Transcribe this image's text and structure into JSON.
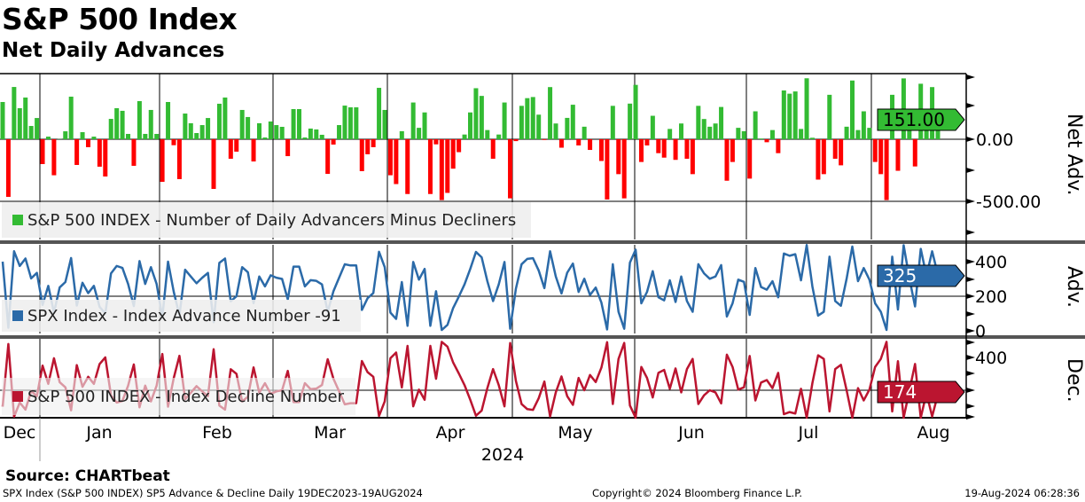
{
  "title": "S&P 500 Index",
  "subtitle": "Net Daily Advances",
  "source": "Source: CHARTbeat",
  "footer": {
    "left": "SPX Index (S&P 500 INDEX) SP5 Advance & Decline  Daily 19DEC2023-19AUG2024",
    "center": "Copyright© 2024 Bloomberg Finance L.P.",
    "right": "19-Aug-2024 06:28:36"
  },
  "colors": {
    "pos": "#33bb33",
    "neg": "#ff0000",
    "adv": "#2b6aa8",
    "dec": "#bb1530"
  },
  "chart_data": [
    {
      "type": "bar",
      "name": "net",
      "legend": "S&P 500 INDEX - Number of Daily Advancers Minus Decliners",
      "axis_title": "Net Adv.",
      "ticks": [
        "0.00",
        "-500.00"
      ],
      "tick_values": [
        0,
        -500
      ],
      "last_label": "151.00",
      "ylim": [
        -800,
        530
      ],
      "values": [
        300,
        -464,
        421,
        250,
        336,
        107,
        171,
        -200,
        21,
        -290,
        2,
        64,
        343,
        -207,
        57,
        -64,
        21,
        -221,
        -300,
        164,
        250,
        229,
        43,
        -214,
        307,
        43,
        236,
        43,
        -343,
        300,
        -48,
        -321,
        207,
        129,
        50,
        114,
        171,
        -400,
        286,
        336,
        -157,
        -100,
        236,
        179,
        -179,
        129,
        14,
        143,
        114,
        100,
        -136,
        243,
        243,
        14,
        86,
        79,
        36,
        -279,
        -43,
        114,
        271,
        257,
        257,
        -257,
        -121,
        -64,
        414,
        236,
        -290,
        -361,
        65,
        -441,
        296,
        92,
        216,
        -441,
        -41,
        -490,
        -432,
        -237,
        -104,
        38,
        216,
        411,
        349,
        74,
        -157,
        38,
        296,
        -476,
        -15,
        269,
        331,
        340,
        198,
        -6,
        420,
        127,
        -68,
        172,
        278,
        -50,
        101,
        -86,
        0,
        -175,
        -485,
        269,
        -281,
        -476,
        287,
        438,
        -183,
        -50,
        189,
        -112,
        -148,
        83,
        -166,
        127,
        -157,
        -281,
        269,
        163,
        101,
        127,
        260,
        -334,
        -183,
        92,
        65,
        -317,
        225,
        6,
        -24,
        74,
        -112,
        393,
        367,
        385,
        83,
        491,
        12,
        -325,
        -281,
        358,
        -157,
        -210,
        101,
        473,
        74,
        225,
        92,
        -183,
        -281,
        -490,
        358,
        -254,
        490,
        109,
        -219,
        447,
        136,
        420,
        151
      ]
    },
    {
      "type": "line",
      "name": "advances",
      "legend": "SPX Index - Index Advance Number -91",
      "axis_title": "Adv.",
      "ticks": [
        "400",
        "200",
        "0"
      ],
      "tick_values": [
        400,
        200,
        0
      ],
      "last_label": "325",
      "ylim": [
        -15,
        497
      ],
      "values": [
        400,
        18,
        460,
        375,
        418,
        303,
        335,
        150,
        260,
        105,
        251,
        282,
        421,
        146,
        278,
        218,
        260,
        139,
        100,
        332,
        375,
        364,
        271,
        143,
        403,
        271,
        368,
        271,
        78,
        400,
        226,
        89,
        353,
        314,
        275,
        307,
        335,
        50,
        393,
        418,
        171,
        200,
        368,
        339,
        160,
        314,
        257,
        321,
        307,
        300,
        182,
        371,
        371,
        257,
        293,
        289,
        268,
        110,
        228,
        307,
        385,
        378,
        378,
        121,
        189,
        218,
        457,
        368,
        105,
        69,
        282,
        29,
        398,
        296,
        358,
        29,
        229,
        5,
        34,
        132,
        198,
        269,
        358,
        456,
        425,
        287,
        172,
        269,
        398,
        12,
        243,
        385,
        416,
        420,
        349,
        247,
        460,
        314,
        216,
        336,
        389,
        225,
        301,
        207,
        250,
        163,
        8,
        385,
        110,
        12,
        394,
        469,
        159,
        225,
        345,
        194,
        176,
        292,
        167,
        314,
        172,
        110,
        385,
        332,
        301,
        314,
        380,
        83,
        159,
        296,
        283,
        92,
        363,
        253,
        238,
        287,
        194,
        447,
        434,
        443,
        292,
        496,
        256,
        88,
        110,
        429,
        172,
        145,
        301,
        487,
        287,
        363,
        296,
        159,
        110,
        5,
        429,
        123,
        495,
        305,
        141,
        474,
        318,
        460,
        325
      ]
    },
    {
      "type": "line",
      "name": "declines",
      "legend": "S&P 500 INDEX - Index Decline Number",
      "axis_title": "Dec.",
      "ticks": [
        "400"
      ],
      "tick_values": [
        400
      ],
      "last_label": "174",
      "ylim": [
        38,
        510
      ],
      "derived": "advances - net"
    }
  ],
  "x_axis": {
    "months": [
      "Dec",
      "Jan",
      "Feb",
      "Mar",
      "Apr",
      "May",
      "Jun",
      "Jul",
      "Aug"
    ],
    "year": "2024"
  }
}
